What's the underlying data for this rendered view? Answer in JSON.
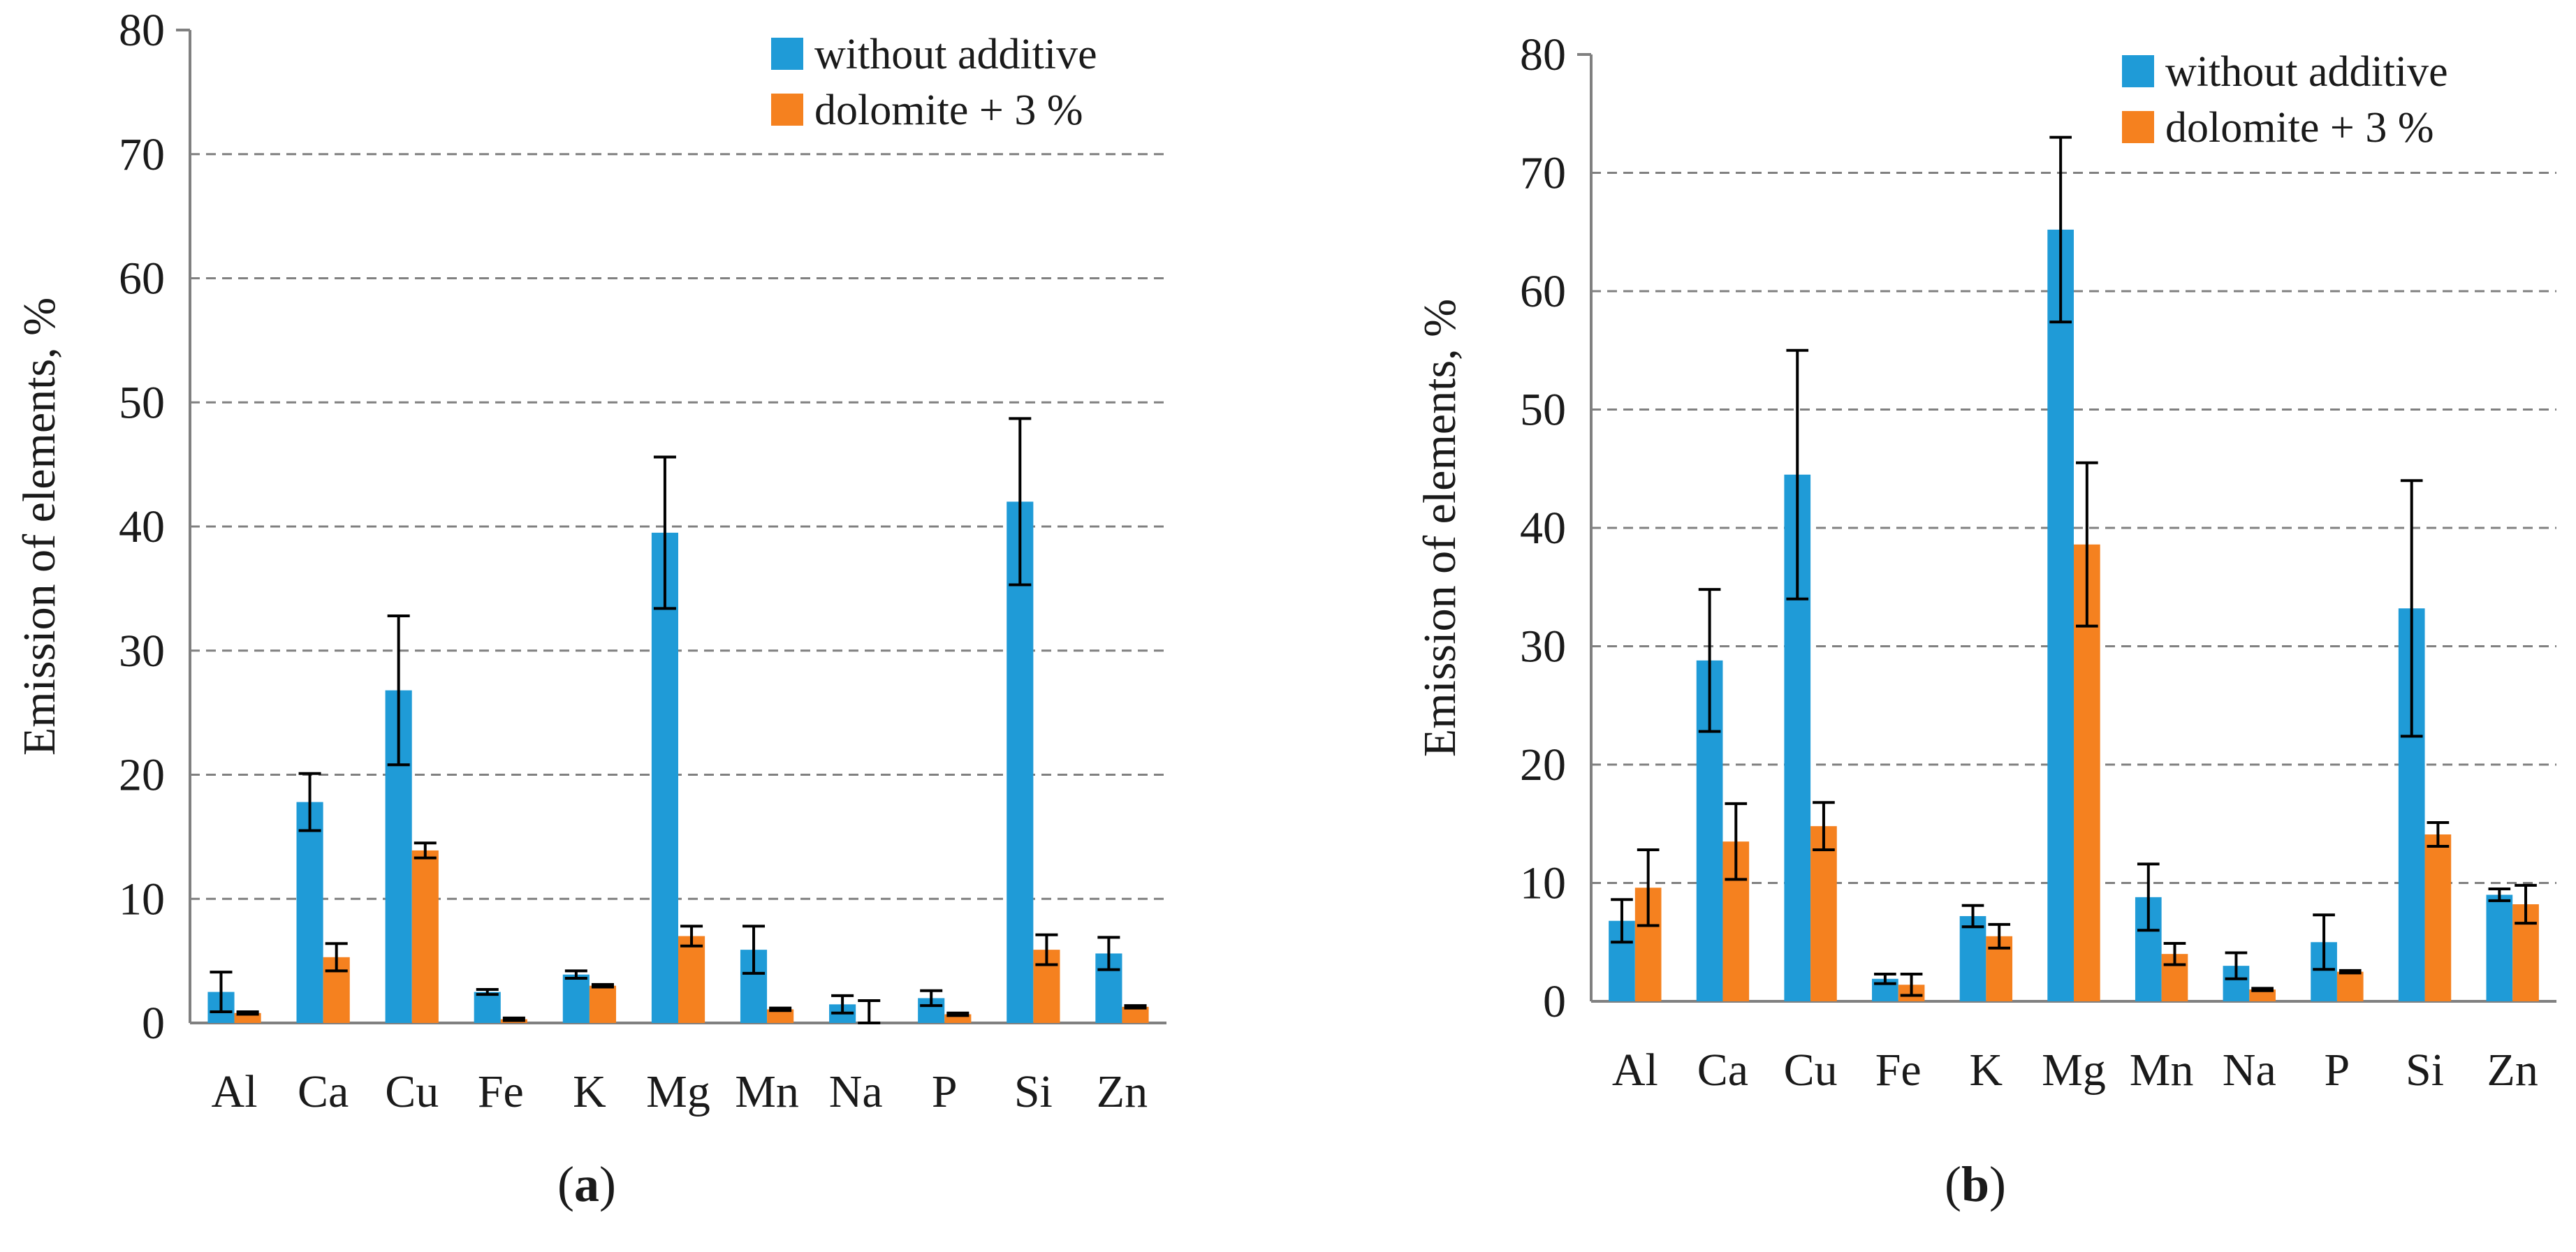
{
  "colors": {
    "without_additive": "#1F9BD7",
    "dolomite": "#F5811F",
    "grid": "#808080",
    "axis": "#808080",
    "error_bar": "#000000"
  },
  "chart_data": [
    {
      "type": "bar",
      "panel_label": "a",
      "ylabel": "Emission of elements, %",
      "ylim": [
        0,
        80
      ],
      "yticks": [
        0,
        10,
        20,
        30,
        40,
        50,
        60,
        70,
        80
      ],
      "grid": "horizontal dashed",
      "legend_position": "top-right",
      "categories": [
        "Al",
        "Ca",
        "Cu",
        "Fe",
        "K",
        "Mg",
        "Mn",
        "Na",
        "P",
        "Si",
        "Zn"
      ],
      "series": [
        {
          "name": "without additive",
          "color_key": "without_additive",
          "values": [
            2.5,
            17.8,
            26.8,
            2.5,
            3.9,
            39.5,
            5.9,
            1.5,
            2.0,
            42.0,
            5.6
          ],
          "errors": [
            1.6,
            2.3,
            6.0,
            0.2,
            0.3,
            6.1,
            1.9,
            0.7,
            0.6,
            6.7,
            1.3
          ]
        },
        {
          "name": "dolomite + 3 %",
          "color_key": "dolomite",
          "values": [
            0.8,
            5.3,
            13.9,
            0.3,
            3.0,
            7.0,
            1.1,
            0.0,
            0.7,
            5.9,
            1.3
          ],
          "errors": [
            0.1,
            1.1,
            0.6,
            0.1,
            0.1,
            0.8,
            0.1,
            1.8,
            0.1,
            1.2,
            0.1
          ]
        }
      ]
    },
    {
      "type": "bar",
      "panel_label": "b",
      "ylabel": "Emission of elements, %",
      "ylim": [
        0,
        80
      ],
      "yticks": [
        0,
        10,
        20,
        30,
        40,
        50,
        60,
        70,
        80
      ],
      "grid": "horizontal dashed",
      "legend_position": "top-right",
      "categories": [
        "Al",
        "Ca",
        "Cu",
        "Fe",
        "K",
        "Mg",
        "Mn",
        "Na",
        "P",
        "Si",
        "Zn"
      ],
      "series": [
        {
          "name": "without additive",
          "color_key": "without_additive",
          "values": [
            6.8,
            28.8,
            44.5,
            1.9,
            7.2,
            65.2,
            8.8,
            3.0,
            5.0,
            33.2,
            9.0
          ],
          "errors": [
            1.8,
            6.0,
            10.5,
            0.4,
            0.9,
            7.8,
            2.8,
            1.1,
            2.3,
            10.8,
            0.5
          ]
        },
        {
          "name": "dolomite + 3 %",
          "color_key": "dolomite",
          "values": [
            9.6,
            13.5,
            14.8,
            1.4,
            5.5,
            38.6,
            4.0,
            1.0,
            2.5,
            14.1,
            8.2
          ],
          "errors": [
            3.2,
            3.2,
            2.0,
            0.9,
            1.0,
            6.9,
            0.9,
            0.1,
            0.1,
            1.0,
            1.6
          ]
        }
      ]
    }
  ]
}
